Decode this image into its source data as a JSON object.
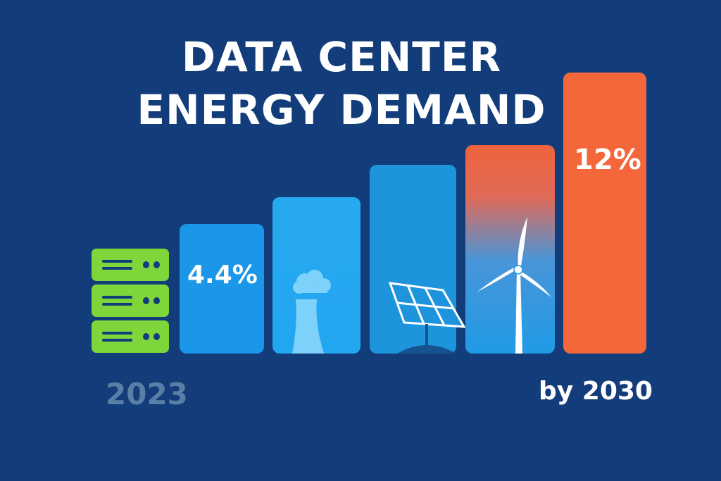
{
  "title": {
    "line1": "DATA CENTER",
    "line2": "ENERGY DEMAND"
  },
  "colors": {
    "background": "#123d7a",
    "server": "#7ed63a",
    "blue": "#1a97e8",
    "orange": "#f4673b"
  },
  "icons": [
    "server-stack-icon",
    "power-plant-icon",
    "solar-panel-icon",
    "wind-turbine-icon"
  ],
  "chart_data": {
    "type": "bar",
    "title": "DATA CENTER ENERGY DEMAND",
    "categories": [
      "",
      "",
      "",
      "",
      ""
    ],
    "data_labels": [
      "4.4%",
      "",
      "",
      "",
      "12%"
    ],
    "values": [
      4.4,
      null,
      null,
      null,
      12
    ],
    "start_label": "2023",
    "end_label": "by 2030",
    "grid": false
  }
}
